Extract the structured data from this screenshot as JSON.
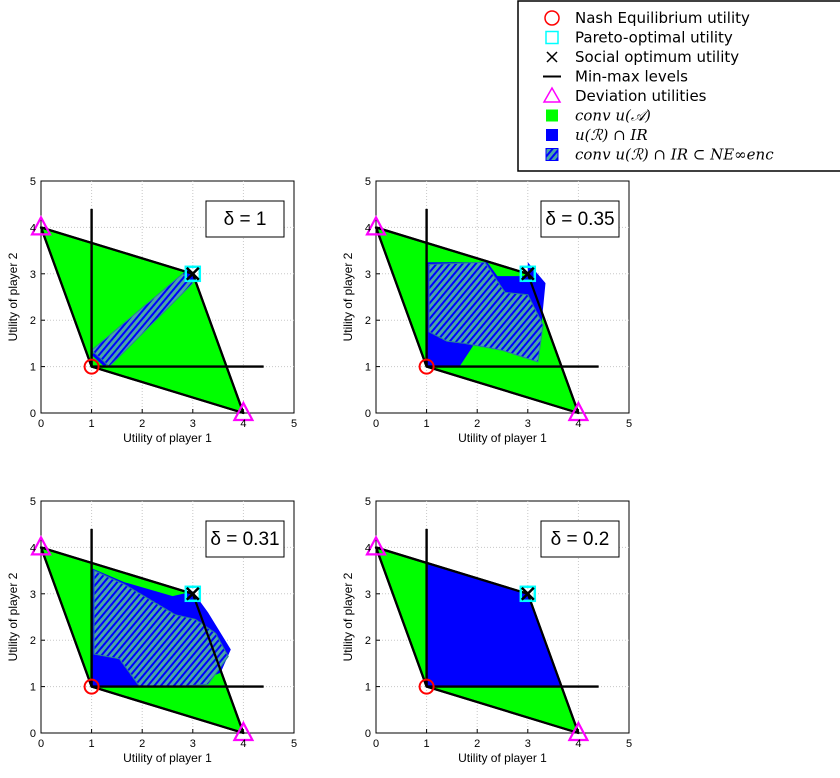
{
  "legend": {
    "items": [
      {
        "label": "Nash Equilibrium utility",
        "icon": "red-circle-icon",
        "math": false
      },
      {
        "label": "Pareto-optimal utility",
        "icon": "cyan-square-icon",
        "math": false
      },
      {
        "label": "Social optimum utility",
        "icon": "black-x-icon",
        "math": false
      },
      {
        "label": "Min-max levels",
        "icon": "black-line-icon",
        "math": false
      },
      {
        "label": "Deviation utilities",
        "icon": "magenta-triangle-icon",
        "math": false
      },
      {
        "label": "conv u(𝒜)",
        "icon": "green-square-icon",
        "math": true
      },
      {
        "label": "u(ℛ) ∩ IR",
        "icon": "blue-square-icon",
        "math": true
      },
      {
        "label": "conv u(ℛ) ∩ IR ⊂ NE∞enc",
        "icon": "hatched-square-icon",
        "math": true
      }
    ]
  },
  "colors": {
    "feasible": "#00ff00",
    "ir_region": "#0000ff",
    "hatch": "#4aa6a6",
    "nash": "#ff0000",
    "pareto": "#00ffff",
    "deviation": "#ff00ff",
    "minmax": "#000000",
    "grid": "#c8c8c8"
  },
  "chart_data": [
    {
      "type": "area",
      "delta_label": "δ = 1",
      "xlabel": "Utility of player 1",
      "ylabel": "Utility of player 2",
      "xlim": [
        0,
        5
      ],
      "ylim": [
        0,
        5
      ],
      "xticks": [
        "0",
        "1",
        "2",
        "3",
        "4",
        "5"
      ],
      "yticks": [
        "0",
        "1",
        "2",
        "3",
        "4",
        "5"
      ],
      "grid": true,
      "feasible_region": [
        [
          0,
          4
        ],
        [
          3,
          3
        ],
        [
          4,
          0
        ],
        [
          1,
          1
        ]
      ],
      "ir_region": [
        [
          1,
          1.25
        ],
        [
          2.9,
          3.1
        ],
        [
          3.05,
          2.9
        ],
        [
          1.25,
          1
        ]
      ],
      "hatched_region": [
        [
          1,
          1.35
        ],
        [
          2.8,
          3.0
        ],
        [
          3.0,
          2.8
        ],
        [
          1.35,
          1
        ]
      ],
      "minmax": {
        "x": 1,
        "y": 1
      },
      "nash": [
        1,
        1
      ],
      "pareto": [
        3,
        3
      ],
      "social_optimum": [
        3,
        3
      ],
      "deviation": [
        [
          0,
          4
        ],
        [
          4,
          0
        ]
      ]
    },
    {
      "type": "area",
      "delta_label": "δ = 0.35",
      "xlabel": "Utility of player 1",
      "ylabel": "Utility of player 2",
      "xlim": [
        0,
        5
      ],
      "ylim": [
        0,
        5
      ],
      "xticks": [
        "0",
        "1",
        "2",
        "3",
        "4",
        "5"
      ],
      "yticks": [
        "0",
        "1",
        "2",
        "3",
        "4",
        "5"
      ],
      "grid": true,
      "feasible_region": [
        [
          0,
          4
        ],
        [
          3,
          3
        ],
        [
          4,
          0
        ],
        [
          1,
          1
        ]
      ],
      "ir_region": [
        [
          1,
          3.25
        ],
        [
          2.2,
          3.25
        ],
        [
          2.4,
          2.95
        ],
        [
          3.0,
          2.95
        ],
        [
          3.0,
          3.25
        ],
        [
          3.35,
          2.8
        ],
        [
          3.25,
          1.7
        ],
        [
          3.1,
          1.3
        ],
        [
          2.45,
          1.35
        ],
        [
          2.35,
          1.5
        ],
        [
          1.95,
          1.5
        ],
        [
          1.65,
          1.0
        ],
        [
          1.3,
          1.0
        ],
        [
          1,
          1.0
        ]
      ],
      "hatched_region": [
        [
          1.05,
          3.2
        ],
        [
          2.15,
          3.25
        ],
        [
          2.55,
          2.6
        ],
        [
          3.0,
          2.55
        ],
        [
          3.3,
          1.9
        ],
        [
          3.2,
          1.1
        ],
        [
          2.5,
          1.35
        ],
        [
          1.75,
          1.5
        ],
        [
          1.4,
          1.55
        ],
        [
          1.05,
          1.75
        ]
      ],
      "minmax": {
        "x": 1,
        "y": 1
      },
      "nash": [
        1,
        1
      ],
      "pareto": [
        3,
        3
      ],
      "social_optimum": [
        3,
        3
      ],
      "deviation": [
        [
          0,
          4
        ],
        [
          4,
          0
        ]
      ]
    },
    {
      "type": "area",
      "delta_label": "δ = 0.31",
      "xlabel": "Utility of player 1",
      "ylabel": "Utility of player 2",
      "xlim": [
        0,
        5
      ],
      "ylim": [
        0,
        5
      ],
      "xticks": [
        "0",
        "1",
        "2",
        "3",
        "4",
        "5"
      ],
      "yticks": [
        "0",
        "1",
        "2",
        "3",
        "4",
        "5"
      ],
      "grid": true,
      "feasible_region": [
        [
          0,
          4
        ],
        [
          3,
          3
        ],
        [
          4,
          0
        ],
        [
          1,
          1
        ]
      ],
      "ir_region": [
        [
          1,
          3.55
        ],
        [
          1.65,
          3.25
        ],
        [
          2.6,
          2.95
        ],
        [
          3.0,
          3.05
        ],
        [
          3.3,
          2.6
        ],
        [
          3.75,
          1.8
        ],
        [
          3.55,
          1.3
        ],
        [
          3.2,
          1.15
        ],
        [
          2.6,
          1.0
        ],
        [
          1,
          1.0
        ]
      ],
      "hatched_region": [
        [
          1.05,
          3.5
        ],
        [
          1.65,
          3.2
        ],
        [
          2.65,
          2.55
        ],
        [
          3.05,
          2.45
        ],
        [
          3.45,
          2.15
        ],
        [
          3.7,
          1.65
        ],
        [
          3.3,
          1.05
        ],
        [
          2.7,
          1.0
        ],
        [
          1.95,
          1.0
        ],
        [
          1.55,
          1.6
        ],
        [
          1.05,
          1.7
        ]
      ],
      "minmax": {
        "x": 1,
        "y": 1
      },
      "nash": [
        1,
        1
      ],
      "pareto": [
        3,
        3
      ],
      "social_optimum": [
        3,
        3
      ],
      "deviation": [
        [
          0,
          4
        ],
        [
          4,
          0
        ]
      ]
    },
    {
      "type": "area",
      "delta_label": "δ = 0.2",
      "xlabel": "Utility of player 1",
      "ylabel": "Utility of player 2",
      "xlim": [
        0,
        5
      ],
      "ylim": [
        0,
        5
      ],
      "xticks": [
        "0",
        "1",
        "2",
        "3",
        "4",
        "5"
      ],
      "yticks": [
        "0",
        "1",
        "2",
        "3",
        "4",
        "5"
      ],
      "grid": true,
      "feasible_region": [
        [
          0,
          4
        ],
        [
          3,
          3
        ],
        [
          4,
          0
        ],
        [
          1,
          1
        ]
      ],
      "ir_region": [
        [
          1,
          3.67
        ],
        [
          3,
          3
        ],
        [
          3.67,
          1
        ],
        [
          1,
          1
        ]
      ],
      "hatched_region": [],
      "minmax": {
        "x": 1,
        "y": 1
      },
      "nash": [
        1,
        1
      ],
      "pareto": [
        3,
        3
      ],
      "social_optimum": [
        3,
        3
      ],
      "deviation": [
        [
          0,
          4
        ],
        [
          4,
          0
        ]
      ]
    }
  ]
}
